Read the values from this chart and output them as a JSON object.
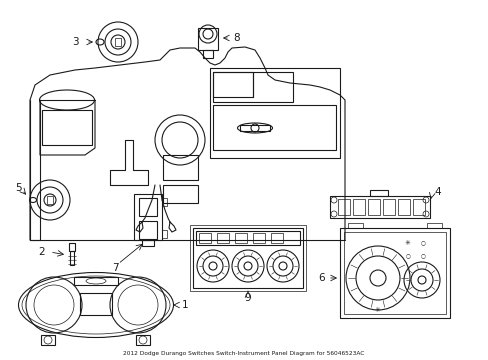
{
  "title": "2012 Dodge Durango Switches Switch-Instrument Panel Diagram for 56046523AC",
  "bg_color": "#ffffff",
  "line_color": "#1a1a1a",
  "fig_width": 4.89,
  "fig_height": 3.6,
  "dpi": 100
}
